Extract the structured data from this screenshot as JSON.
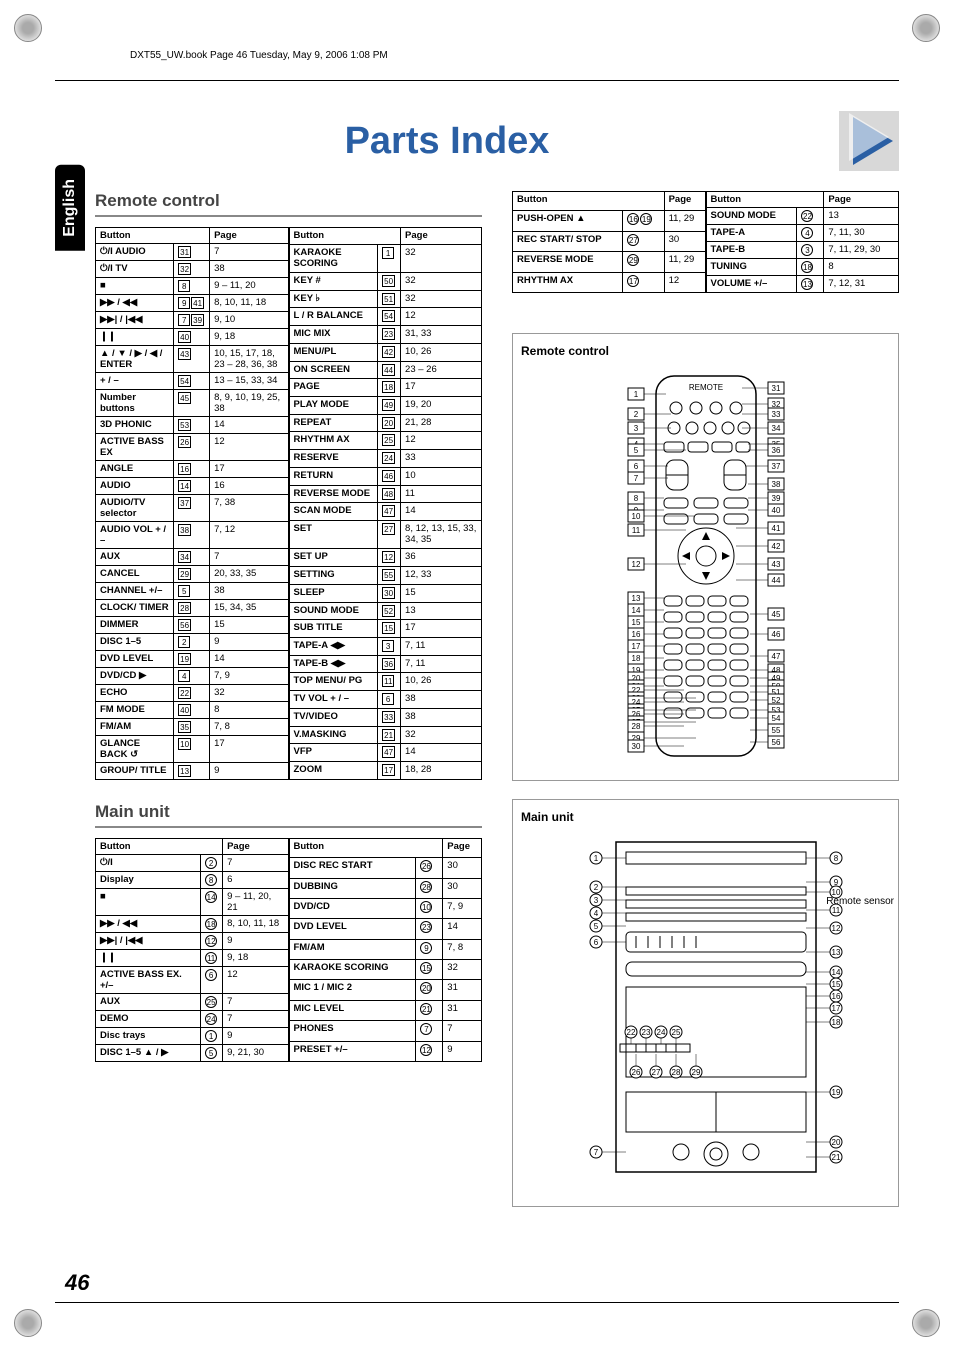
{
  "header_text": "DXT55_UW.book  Page 46  Tuesday, May 9, 2006  1:08 PM",
  "side_tab": "English",
  "title": "Parts Index",
  "page_number": "46",
  "remote_sensor_label": "Remote sensor",
  "sections": {
    "remote_control_heading": "Remote control",
    "main_unit_heading": "Main unit",
    "diagram_remote_title": "Remote control",
    "diagram_main_title": "Main unit"
  },
  "col_headers": {
    "button": "Button",
    "page": "Page"
  },
  "remote_control_left": [
    {
      "btn": "⏻/I AUDIO",
      "ref": [
        "31"
      ],
      "pg": "7"
    },
    {
      "btn": "⏻/I TV",
      "ref": [
        "32"
      ],
      "pg": "38"
    },
    {
      "btn": "■",
      "ref": [
        "8"
      ],
      "pg": "9 – 11, 20"
    },
    {
      "btn": "▶▶ / ◀◀",
      "ref": [
        "9",
        "41"
      ],
      "pg": "8, 10, 11, 18"
    },
    {
      "btn": "▶▶| / |◀◀",
      "ref": [
        "7",
        "39"
      ],
      "pg": "9, 10"
    },
    {
      "btn": "❙❙",
      "ref": [
        "40"
      ],
      "pg": "9, 18"
    },
    {
      "btn": "▲ / ▼ / ▶ / ◀ / ENTER",
      "ref": [
        "43"
      ],
      "pg": "10, 15, 17, 18, 23 – 28, 36, 38"
    },
    {
      "btn": "+ / –",
      "ref": [
        "54"
      ],
      "pg": "13 – 15, 33, 34"
    },
    {
      "btn": "Number buttons",
      "ref": [
        "45"
      ],
      "pg": "8, 9, 10, 19, 25, 38"
    },
    {
      "btn": "3D PHONIC",
      "ref": [
        "53"
      ],
      "pg": "14"
    },
    {
      "btn": "ACTIVE BASS EX",
      "ref": [
        "26"
      ],
      "pg": "12"
    },
    {
      "btn": "ANGLE",
      "ref": [
        "16"
      ],
      "pg": "17"
    },
    {
      "btn": "AUDIO",
      "ref": [
        "14"
      ],
      "pg": "16"
    },
    {
      "btn": "AUDIO/TV selector",
      "ref": [
        "37"
      ],
      "pg": "7, 38"
    },
    {
      "btn": "AUDIO VOL + / –",
      "ref": [
        "38"
      ],
      "pg": "7, 12"
    },
    {
      "btn": "AUX",
      "ref": [
        "34"
      ],
      "pg": "7"
    },
    {
      "btn": "CANCEL",
      "ref": [
        "29"
      ],
      "pg": "20, 33, 35"
    },
    {
      "btn": "CHANNEL +/–",
      "ref": [
        "5"
      ],
      "pg": "38"
    },
    {
      "btn": "CLOCK/ TIMER",
      "ref": [
        "28"
      ],
      "pg": "15, 34, 35"
    },
    {
      "btn": "DIMMER",
      "ref": [
        "56"
      ],
      "pg": "15"
    },
    {
      "btn": "DISC 1–5",
      "ref": [
        "2"
      ],
      "pg": "9"
    },
    {
      "btn": "DVD LEVEL",
      "ref": [
        "19"
      ],
      "pg": "14"
    },
    {
      "btn": "DVD/CD ▶",
      "ref": [
        "4"
      ],
      "pg": "7, 9"
    },
    {
      "btn": "ECHO",
      "ref": [
        "22"
      ],
      "pg": "32"
    },
    {
      "btn": "FM MODE",
      "ref": [
        "40"
      ],
      "pg": "8"
    },
    {
      "btn": "FM/AM",
      "ref": [
        "35"
      ],
      "pg": "7, 8"
    },
    {
      "btn": "GLANCE BACK ↺",
      "ref": [
        "10"
      ],
      "pg": "17"
    },
    {
      "btn": "GROUP/ TITLE",
      "ref": [
        "13"
      ],
      "pg": "9"
    }
  ],
  "remote_control_right": [
    {
      "btn": "KARAOKE SCORING",
      "ref": [
        "1"
      ],
      "pg": "32"
    },
    {
      "btn": "KEY #",
      "ref": [
        "50"
      ],
      "pg": "32"
    },
    {
      "btn": "KEY ♭",
      "ref": [
        "51"
      ],
      "pg": "32"
    },
    {
      "btn": "L / R BALANCE",
      "ref": [
        "54"
      ],
      "pg": "12"
    },
    {
      "btn": "MIC MIX",
      "ref": [
        "23"
      ],
      "pg": "31, 33"
    },
    {
      "btn": "MENU/PL",
      "ref": [
        "42"
      ],
      "pg": "10, 26"
    },
    {
      "btn": "ON SCREEN",
      "ref": [
        "44"
      ],
      "pg": "23 – 26"
    },
    {
      "btn": "PAGE",
      "ref": [
        "18"
      ],
      "pg": "17"
    },
    {
      "btn": "PLAY MODE",
      "ref": [
        "49"
      ],
      "pg": "19, 20"
    },
    {
      "btn": "REPEAT",
      "ref": [
        "20"
      ],
      "pg": "21, 28"
    },
    {
      "btn": "RHYTHM AX",
      "ref": [
        "25"
      ],
      "pg": "12"
    },
    {
      "btn": "RESERVE",
      "ref": [
        "24"
      ],
      "pg": "33"
    },
    {
      "btn": "RETURN",
      "ref": [
        "46"
      ],
      "pg": "10"
    },
    {
      "btn": "REVERSE MODE",
      "ref": [
        "48"
      ],
      "pg": "11"
    },
    {
      "btn": "SCAN MODE",
      "ref": [
        "47"
      ],
      "pg": "14"
    },
    {
      "btn": "SET",
      "ref": [
        "27"
      ],
      "pg": "8, 12, 13, 15, 33, 34, 35"
    },
    {
      "btn": "SET UP",
      "ref": [
        "12"
      ],
      "pg": "36"
    },
    {
      "btn": "SETTING",
      "ref": [
        "55"
      ],
      "pg": "12, 33"
    },
    {
      "btn": "SLEEP",
      "ref": [
        "30"
      ],
      "pg": "15"
    },
    {
      "btn": "SOUND MODE",
      "ref": [
        "52"
      ],
      "pg": "13"
    },
    {
      "btn": "SUB TITLE",
      "ref": [
        "15"
      ],
      "pg": "17"
    },
    {
      "btn": "TAPE-A ◀▶",
      "ref": [
        "3"
      ],
      "pg": "7, 11"
    },
    {
      "btn": "TAPE-B ◀▶",
      "ref": [
        "36"
      ],
      "pg": "7, 11"
    },
    {
      "btn": "TOP MENU/ PG",
      "ref": [
        "11"
      ],
      "pg": "10, 26"
    },
    {
      "btn": "TV VOL + / –",
      "ref": [
        "6"
      ],
      "pg": "38"
    },
    {
      "btn": "TV/VIDEO",
      "ref": [
        "33"
      ],
      "pg": "38"
    },
    {
      "btn": "V.MASKING",
      "ref": [
        "21"
      ],
      "pg": "32"
    },
    {
      "btn": "VFP",
      "ref": [
        "47"
      ],
      "pg": "14"
    },
    {
      "btn": "ZOOM",
      "ref": [
        "17"
      ],
      "pg": "18, 28"
    }
  ],
  "main_unit_left": [
    {
      "btn": "⏻/I",
      "ref": [
        "2"
      ],
      "circ": true,
      "pg": "7"
    },
    {
      "btn": "Display",
      "ref": [
        "8"
      ],
      "circ": true,
      "pg": "6"
    },
    {
      "btn": "■",
      "ref": [
        "14"
      ],
      "circ": true,
      "pg": "9 – 11, 20, 21"
    },
    {
      "btn": "▶▶ / ◀◀",
      "ref": [
        "18"
      ],
      "circ": true,
      "pg": "8, 10, 11, 18"
    },
    {
      "btn": "▶▶| / |◀◀",
      "ref": [
        "12"
      ],
      "circ": true,
      "pg": "9"
    },
    {
      "btn": "❙❙",
      "ref": [
        "11"
      ],
      "circ": true,
      "pg": "9, 18"
    },
    {
      "btn": "ACTIVE BASS EX. +/–",
      "ref": [
        "6"
      ],
      "circ": true,
      "pg": "12"
    },
    {
      "btn": "AUX",
      "ref": [
        "25"
      ],
      "circ": true,
      "pg": "7"
    },
    {
      "btn": "DEMO",
      "ref": [
        "24"
      ],
      "circ": true,
      "pg": "7"
    },
    {
      "btn": "Disc trays",
      "ref": [
        "1"
      ],
      "circ": true,
      "pg": "9"
    },
    {
      "btn": "DISC 1–5 ▲ / ▶",
      "ref": [
        "5"
      ],
      "circ": true,
      "pg": "9, 21, 30"
    }
  ],
  "main_unit_right": [
    {
      "btn": "DISC REC START",
      "ref": [
        "26"
      ],
      "circ": true,
      "pg": "30"
    },
    {
      "btn": "DUBBING",
      "ref": [
        "28"
      ],
      "circ": true,
      "pg": "30"
    },
    {
      "btn": "DVD/CD",
      "ref": [
        "10"
      ],
      "circ": true,
      "pg": "7, 9"
    },
    {
      "btn": "DVD LEVEL",
      "ref": [
        "23"
      ],
      "circ": true,
      "pg": "14"
    },
    {
      "btn": "FM/AM",
      "ref": [
        "9"
      ],
      "circ": true,
      "pg": "7, 8"
    },
    {
      "btn": "KARAOKE SCORING",
      "ref": [
        "15"
      ],
      "circ": true,
      "pg": "32"
    },
    {
      "btn": "MIC 1 / MIC 2",
      "ref": [
        "20"
      ],
      "circ": true,
      "pg": "31"
    },
    {
      "btn": "MIC LEVEL",
      "ref": [
        "21"
      ],
      "circ": true,
      "pg": "31"
    },
    {
      "btn": "PHONES",
      "ref": [
        "7"
      ],
      "circ": true,
      "pg": "7"
    },
    {
      "btn": "PRESET +/–",
      "ref": [
        "12"
      ],
      "circ": true,
      "pg": "9"
    }
  ],
  "main_unit_top_left": [
    {
      "btn": "PUSH-OPEN ▲",
      "ref": [
        "16",
        "19"
      ],
      "circ": true,
      "pg": "11, 29"
    },
    {
      "btn": "REC START/ STOP",
      "ref": [
        "27"
      ],
      "circ": true,
      "pg": "30"
    },
    {
      "btn": "REVERSE MODE",
      "ref": [
        "29"
      ],
      "circ": true,
      "pg": "11, 29"
    },
    {
      "btn": "RHYTHM AX",
      "ref": [
        "17"
      ],
      "circ": true,
      "pg": "12"
    }
  ],
  "main_unit_top_right": [
    {
      "btn": "SOUND MODE",
      "ref": [
        "22"
      ],
      "circ": true,
      "pg": "13"
    },
    {
      "btn": "TAPE-A",
      "ref": [
        "4"
      ],
      "circ": true,
      "pg": "7, 11, 30"
    },
    {
      "btn": "TAPE-B",
      "ref": [
        "3"
      ],
      "circ": true,
      "pg": "7, 11, 29, 30"
    },
    {
      "btn": "TUNING",
      "ref": [
        "18"
      ],
      "circ": true,
      "pg": "8"
    },
    {
      "btn": "VOLUME +/–",
      "ref": [
        "13"
      ],
      "circ": true,
      "pg": "7, 12, 31"
    }
  ],
  "colors": {
    "title": "#2a5fa4",
    "heading_rule": "#888888",
    "border": "#000000",
    "diagram_border": "#999999"
  }
}
